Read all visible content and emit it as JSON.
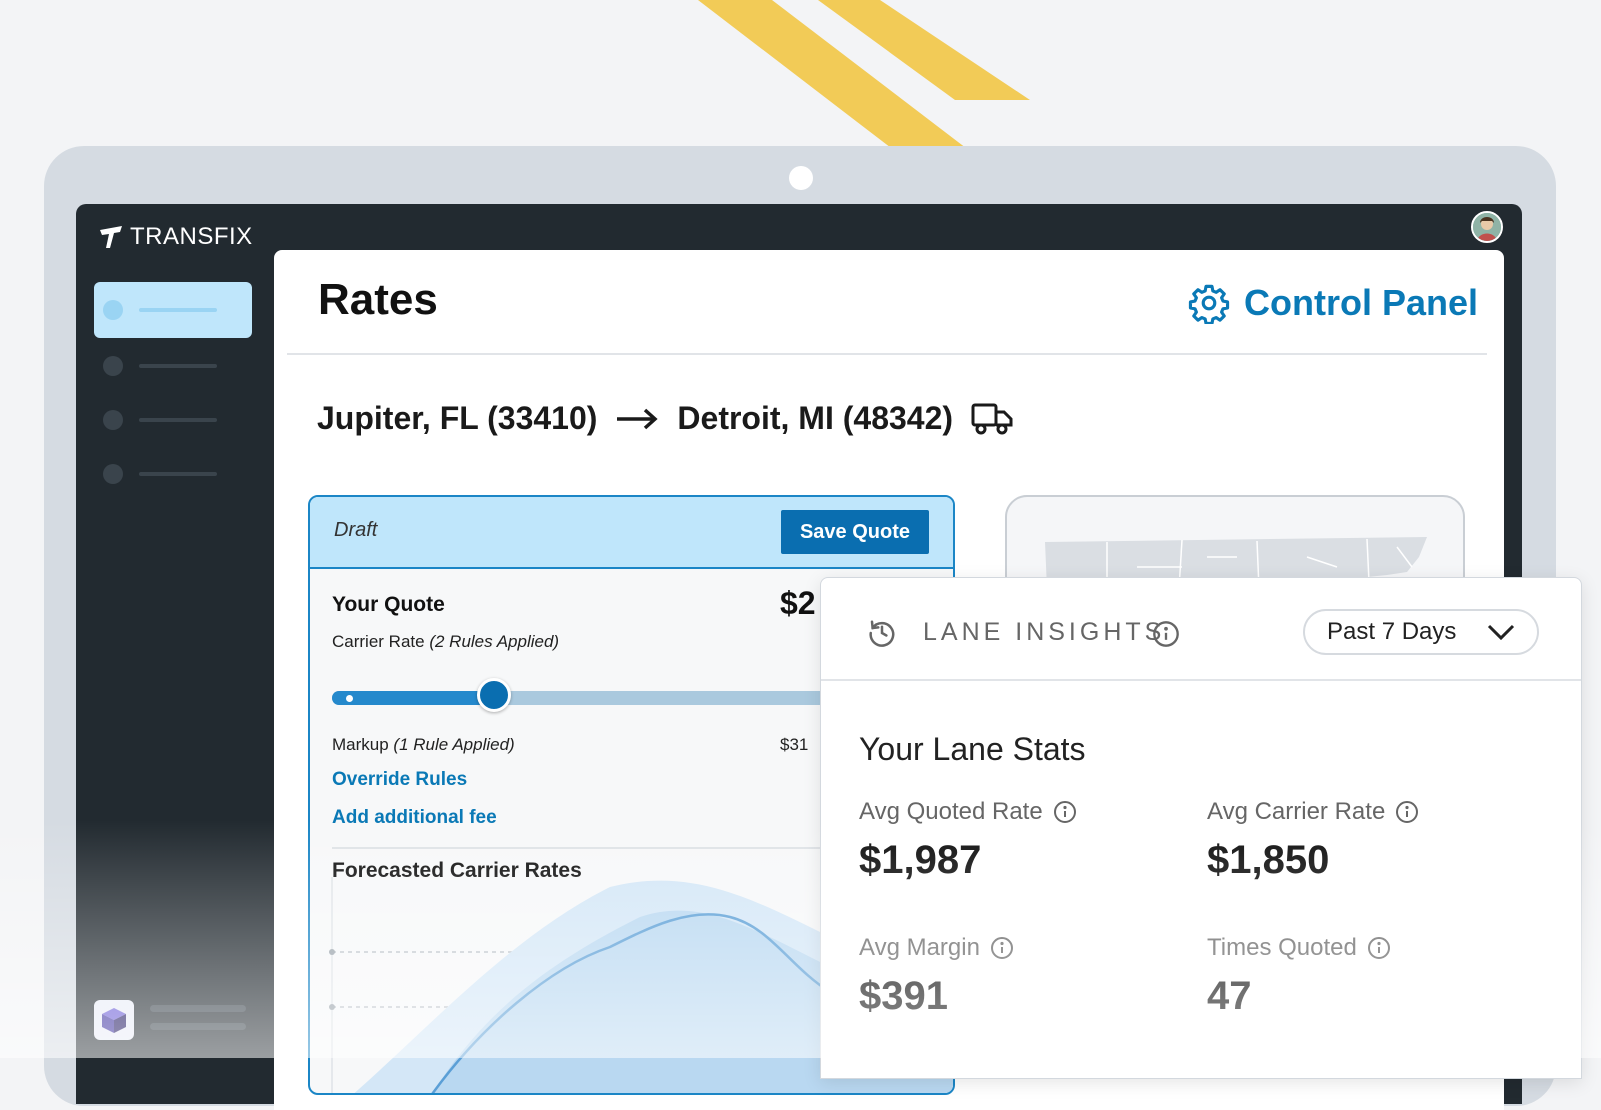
{
  "app": {
    "brand": "TRANSFIX"
  },
  "header": {
    "title": "Rates",
    "control_panel": "Control Panel"
  },
  "route": {
    "origin": "Jupiter, FL (33410)",
    "destination": "Detroit, MI (48342)"
  },
  "quote": {
    "status": "Draft",
    "save_label": "Save Quote",
    "your_quote": "Your Quote",
    "quote_value_partial": "$2",
    "carrier_rate_label": "Carrier Rate",
    "carrier_rate_note": "(2 Rules Applied)",
    "markup_label": "Markup",
    "markup_note": "(1 Rule Applied)",
    "markup_value_partial": "$31",
    "override_rules": "Override Rules",
    "add_fee": "Add additional fee",
    "forecast_title": "Forecasted Carrier Rates",
    "slider_position": 0.27
  },
  "lane": {
    "title": "LANE INSIGHTS",
    "range": "Past 7 Days",
    "stats_title": "Your Lane Stats",
    "stats": [
      {
        "label": "Avg Quoted Rate",
        "value": "$1,987"
      },
      {
        "label": "Avg Carrier Rate",
        "value": "$1,850"
      },
      {
        "label": "Avg Margin",
        "value": "$391"
      },
      {
        "label": "Times Quoted",
        "value": "47"
      }
    ]
  },
  "colors": {
    "accent": "#0a79b6",
    "draft_bg": "#bfe6fb",
    "stripe": "#f2cb57",
    "sidebar": "#222a30"
  }
}
